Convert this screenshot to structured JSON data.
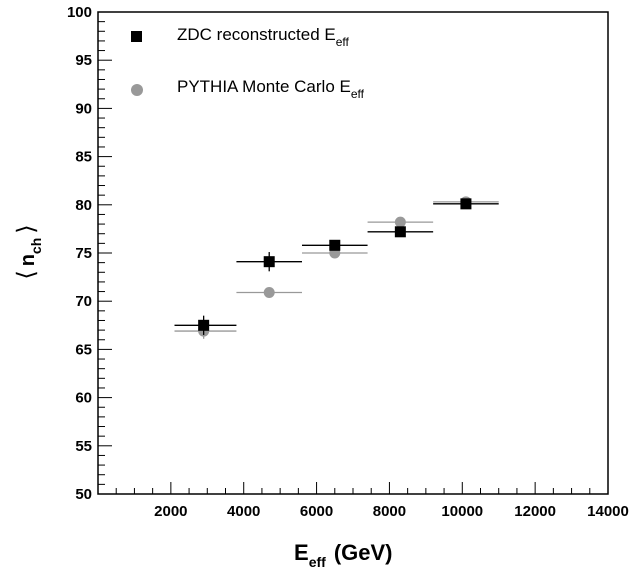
{
  "chart_data": {
    "type": "scatter",
    "xlim": [
      0,
      14000
    ],
    "ylim": [
      50,
      100
    ],
    "x_ticks": [
      "2000",
      "4000",
      "6000",
      "8000",
      "10000",
      "12000",
      "14000"
    ],
    "y_ticks": [
      "50",
      "55",
      "60",
      "65",
      "70",
      "75",
      "80",
      "85",
      "90",
      "95",
      "100"
    ],
    "xlabel": {
      "main": "E",
      "sub": "eff",
      "suffix": "(GeV)"
    },
    "ylabel": {
      "main": "n",
      "sub": "ch"
    },
    "legend_position": "top-left",
    "series": [
      {
        "name_main": "ZDC reconstructed E",
        "name_sub": "eff",
        "marker": "square",
        "color": "#000000",
        "points": [
          {
            "x": 2900,
            "y": 67.5,
            "xerr_lo": 2100,
            "xerr_hi": 3800,
            "yerr": 1.0
          },
          {
            "x": 4700,
            "y": 74.1,
            "xerr_lo": 3800,
            "xerr_hi": 5600,
            "yerr": 1.0
          },
          {
            "x": 6500,
            "y": 75.8,
            "xerr_lo": 5600,
            "xerr_hi": 7400,
            "yerr": 0.4
          },
          {
            "x": 8300,
            "y": 77.2,
            "xerr_lo": 7400,
            "xerr_hi": 9200,
            "yerr": 0.3
          },
          {
            "x": 10100,
            "y": 80.1,
            "xerr_lo": 9200,
            "xerr_hi": 11000,
            "yerr": 0.3
          }
        ]
      },
      {
        "name_main": "PYTHIA Monte Carlo E",
        "name_sub": "eff",
        "marker": "circle",
        "color": "#999999",
        "points": [
          {
            "x": 2900,
            "y": 66.9,
            "xerr_lo": 2100,
            "xerr_hi": 3800,
            "yerr": 0.8
          },
          {
            "x": 4700,
            "y": 70.9,
            "xerr_lo": 3800,
            "xerr_hi": 5600,
            "yerr": 0.3
          },
          {
            "x": 6500,
            "y": 75.0,
            "xerr_lo": 5600,
            "xerr_hi": 7400,
            "yerr": 0.3
          },
          {
            "x": 8300,
            "y": 78.2,
            "xerr_lo": 7400,
            "xerr_hi": 9200,
            "yerr": 0.3
          },
          {
            "x": 10100,
            "y": 80.3,
            "xerr_lo": 9200,
            "xerr_hi": 11000,
            "yerr": 0.3
          }
        ]
      }
    ]
  }
}
